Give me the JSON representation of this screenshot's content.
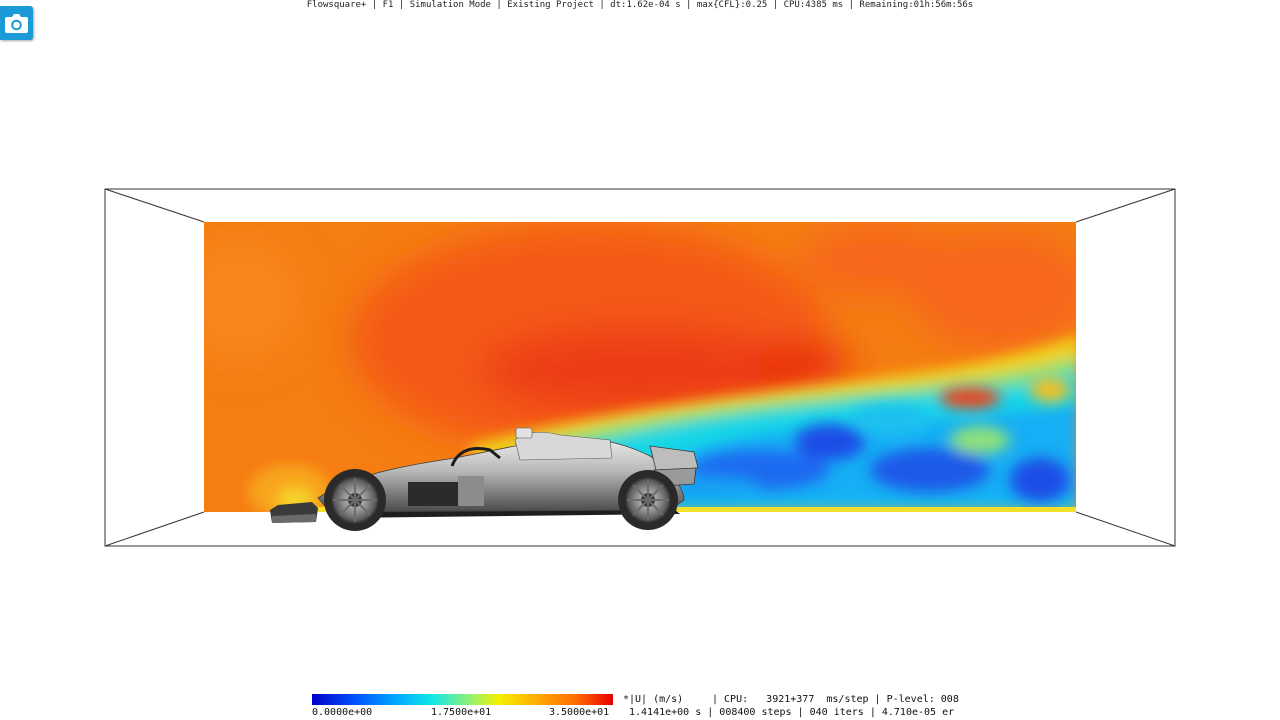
{
  "window": {
    "title": "Flowsquare+ | F1 | Simulation Mode | Existing Project | dt:1.62e-04 s | max{CFL}:0.25 | CPU:4385 ms | Remaining:01h:56m:56s"
  },
  "toolbar": {
    "camera_icon": "camera-icon",
    "accent": "#1a9ad6"
  },
  "colorbar": {
    "min_label": "0.0000e+00",
    "mid_label": "1.7500e+01",
    "max_label": "3.5000e+01",
    "variable_label": "*|U| (m/s)",
    "colors": [
      "#0000c8",
      "#00a8ff",
      "#10e8e8",
      "#f4f000",
      "#ff6a00",
      "#e80000"
    ]
  },
  "status": {
    "cpu_line": "| CPU:   3921+377  ms/step | P-level: 008",
    "run_line": "1.4141e+00 s | 008400 steps | 040 iters | 4.710e-05 er"
  }
}
